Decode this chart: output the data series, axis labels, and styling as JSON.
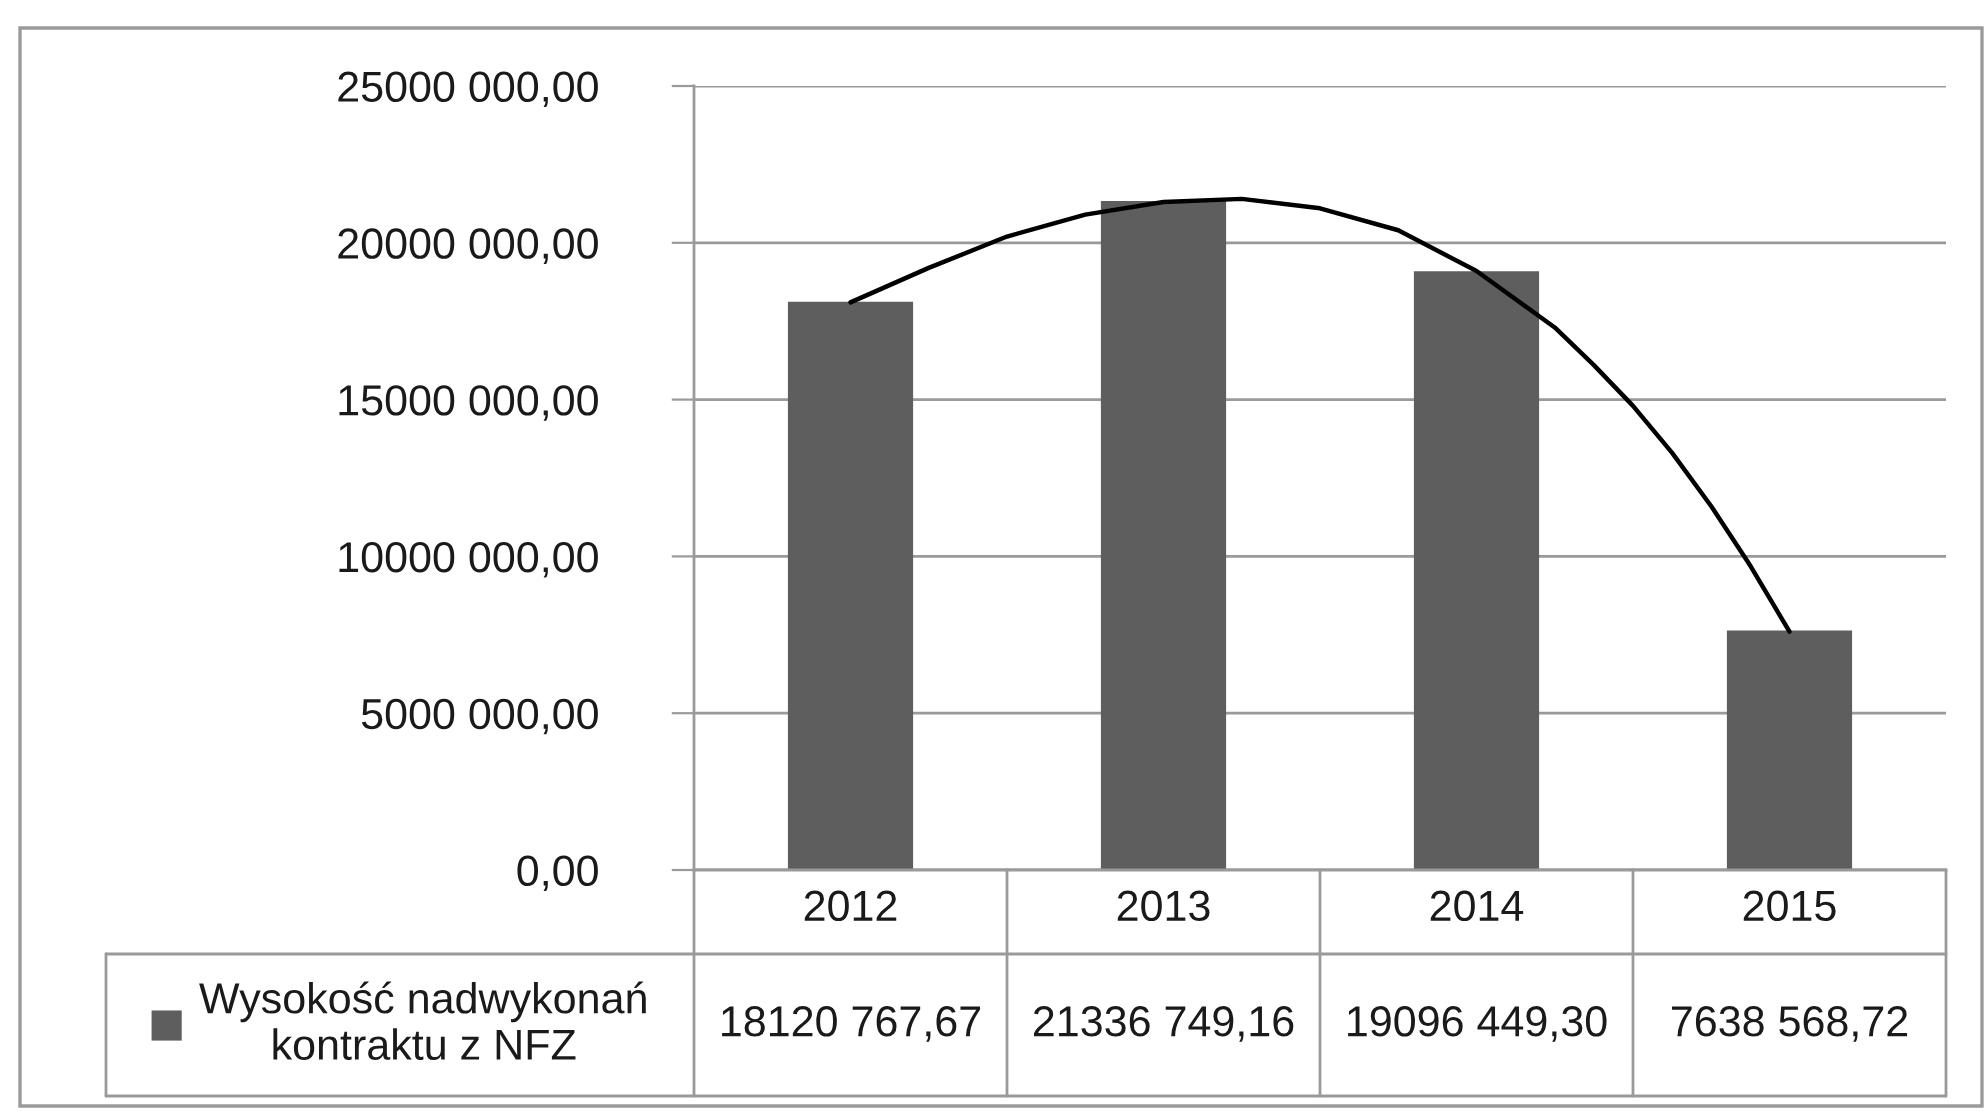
{
  "chart_data": {
    "type": "bar",
    "x": [
      2012,
      2013,
      2014,
      2015
    ],
    "xlim": [
      2011.5,
      2015.5
    ],
    "xticks": [
      2012,
      2013,
      2014,
      2015
    ],
    "ylim": [
      0,
      25000000
    ],
    "yticks": [
      {
        "value": 0,
        "label": "0,00"
      },
      {
        "value": 5000000,
        "label": "5000 000,00"
      },
      {
        "value": 10000000,
        "label": "10000 000,00"
      },
      {
        "value": 15000000,
        "label": "15000 000,00"
      },
      {
        "value": 20000000,
        "label": "20000 000,00"
      },
      {
        "value": 25000000,
        "label": "25000 000,00"
      }
    ],
    "grid": "y",
    "legend": "bottom",
    "series": [
      {
        "name": "Wysokość nadwykonań kontraktu z NFZ",
        "color": "#5e5e5e",
        "values": [
          18120767.67,
          21336749.16,
          19096449.3,
          7638568.72
        ],
        "value_labels": [
          "18120 767,67",
          "21336 749,16",
          "19096 449,30",
          "7638 568,72"
        ]
      },
      {
        "type": "line",
        "color": "#000000",
        "x": [
          2012,
          2012.25,
          2012.5,
          2012.75,
          2013,
          2013.25,
          2013.5,
          2013.75,
          2014,
          2014.25,
          2014.375,
          2014.5,
          2014.625,
          2014.75,
          2014.875,
          2015
        ],
        "values": [
          18100000,
          19200000,
          20200000,
          20900000,
          21300000,
          21400000,
          21100000,
          20400000,
          19100000,
          17300000,
          16100000,
          14800000,
          13300000,
          11600000,
          9700000,
          7600000
        ]
      }
    ]
  }
}
